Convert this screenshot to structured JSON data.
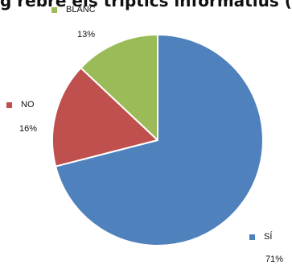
{
  "chart_data": {
    "type": "pie",
    "title": "g rebre els tríptics informatius (e",
    "categories": [
      "SÍ",
      "NO",
      "BLANC"
    ],
    "values": [
      71,
      16,
      13
    ],
    "value_labels": [
      "71%",
      "16%",
      "13%"
    ],
    "colors": [
      "#4f81bd",
      "#c0504d",
      "#9bbb59"
    ],
    "start_angle_deg": 0,
    "direction": "clockwise",
    "legend": "labels beside slices"
  }
}
